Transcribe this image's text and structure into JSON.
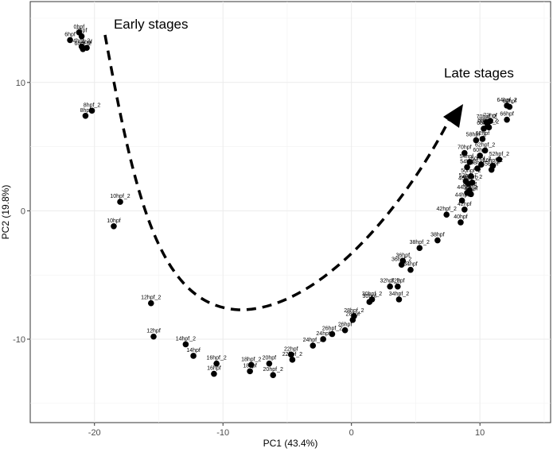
{
  "chart_data": {
    "type": "scatter",
    "title": "",
    "xlabel": "PC1 (43.4%)",
    "ylabel": "PC2 (19.8%)",
    "xlim": [
      -25,
      15.5
    ],
    "ylim": [
      -16.5,
      16.3
    ],
    "xticks": [
      -20,
      -10,
      0,
      10
    ],
    "yticks": [
      -10,
      0,
      10
    ],
    "grid": true,
    "legend": "none",
    "annotations": [
      {
        "text": "Early stages",
        "x": -18.5,
        "y": 14.2
      },
      {
        "text": "Late stages",
        "x": 7.2,
        "y": 10.4
      }
    ],
    "points": [
      {
        "label": "0hpf",
        "x": -21.2,
        "y": 13.9
      },
      {
        "label": "2hpf",
        "x": -21.0,
        "y": 13.6
      },
      {
        "label": "6hpf",
        "x": -21.9,
        "y": 13.3
      },
      {
        "label": "4hpf_2",
        "x": -21.0,
        "y": 12.8
      },
      {
        "label": "6hpf_2",
        "x": -20.9,
        "y": 12.6
      },
      {
        "label": "4hpf",
        "x": -20.6,
        "y": 12.7
      },
      {
        "label": "8hpf_2",
        "x": -20.2,
        "y": 7.8
      },
      {
        "label": "8hpf",
        "x": -20.7,
        "y": 7.4
      },
      {
        "label": "10hpf_2",
        "x": -18.0,
        "y": 0.7
      },
      {
        "label": "10hpf",
        "x": -18.5,
        "y": -1.2
      },
      {
        "label": "12hpf_2",
        "x": -15.6,
        "y": -7.2
      },
      {
        "label": "12hpf",
        "x": -15.4,
        "y": -9.8
      },
      {
        "label": "14hpf_2",
        "x": -12.9,
        "y": -10.4
      },
      {
        "label": "14hpf",
        "x": -12.3,
        "y": -11.3
      },
      {
        "label": "16hpf_2",
        "x": -10.5,
        "y": -11.9
      },
      {
        "label": "16hpf",
        "x": -10.7,
        "y": -12.7
      },
      {
        "label": "18hpf_2",
        "x": -7.8,
        "y": -12.0
      },
      {
        "label": "18hpf",
        "x": -7.9,
        "y": -12.5
      },
      {
        "label": "20hpf",
        "x": -6.4,
        "y": -11.9
      },
      {
        "label": "20hpf_2",
        "x": -6.1,
        "y": -12.8
      },
      {
        "label": "22hpf",
        "x": -4.7,
        "y": -11.2
      },
      {
        "label": "22hpf_2",
        "x": -4.6,
        "y": -11.6
      },
      {
        "label": "24hpf_2",
        "x": -3.0,
        "y": -10.5
      },
      {
        "label": "24hpf",
        "x": -2.2,
        "y": -10.0
      },
      {
        "label": "26hpf_2",
        "x": -1.5,
        "y": -9.6
      },
      {
        "label": "26hpf",
        "x": -0.5,
        "y": -9.3
      },
      {
        "label": "28hpf",
        "x": 0.1,
        "y": -8.5
      },
      {
        "label": "28hpf_2",
        "x": 0.2,
        "y": -8.2
      },
      {
        "label": "30hpf",
        "x": 1.4,
        "y": -7.1
      },
      {
        "label": "30hpf_2",
        "x": 1.6,
        "y": -6.9
      },
      {
        "label": "32hpf_2",
        "x": 3.0,
        "y": -5.9
      },
      {
        "label": "32hpf",
        "x": 3.6,
        "y": -5.9
      },
      {
        "label": "34hpf_2",
        "x": 3.7,
        "y": -6.9
      },
      {
        "label": "34hpf",
        "x": 4.6,
        "y": -4.6
      },
      {
        "label": "36hpf_2",
        "x": 3.9,
        "y": -4.2
      },
      {
        "label": "36hpf",
        "x": 4.0,
        "y": -3.9
      },
      {
        "label": "38hpf_2",
        "x": 5.3,
        "y": -2.9
      },
      {
        "label": "38hpf",
        "x": 6.7,
        "y": -2.3
      },
      {
        "label": "40hpf",
        "x": 8.5,
        "y": -0.9
      },
      {
        "label": "42hpf_2",
        "x": 7.4,
        "y": -0.3
      },
      {
        "label": "42hpf",
        "x": 8.8,
        "y": 0.1
      },
      {
        "label": "44hpf",
        "x": 8.6,
        "y": 0.8
      },
      {
        "label": "44hpf_2",
        "x": 9.0,
        "y": 1.4
      },
      {
        "label": "46hpf",
        "x": 9.2,
        "y": 1.6
      },
      {
        "label": "46hpf_2",
        "x": 9.1,
        "y": 2.1
      },
      {
        "label": "48hpf",
        "x": 9.3,
        "y": 1.3
      },
      {
        "label": "48hpf_2",
        "x": 9.4,
        "y": 2.2
      },
      {
        "label": "50hpf_2",
        "x": 9.3,
        "y": 2.7
      },
      {
        "label": "52hpf",
        "x": 8.9,
        "y": 2.3
      },
      {
        "label": "52hpf_2",
        "x": 11.5,
        "y": 4.0
      },
      {
        "label": "54hpf",
        "x": 9.0,
        "y": 3.4
      },
      {
        "label": "54hpf_2",
        "x": 9.2,
        "y": 3.8
      },
      {
        "label": "56hpf",
        "x": 10.9,
        "y": 3.2
      },
      {
        "label": "56hpf_2",
        "x": 11.0,
        "y": 3.5
      },
      {
        "label": "58hpf",
        "x": 9.8,
        "y": 3.3
      },
      {
        "label": "58hpf_2",
        "x": 9.7,
        "y": 5.5
      },
      {
        "label": "60hpf",
        "x": 10.0,
        "y": 4.3
      },
      {
        "label": "60hpf_2",
        "x": 10.1,
        "y": 3.6
      },
      {
        "label": "62hpf",
        "x": 10.2,
        "y": 5.6
      },
      {
        "label": "62hpf_2",
        "x": 10.4,
        "y": 4.7
      },
      {
        "label": "64hpf",
        "x": 12.3,
        "y": 8.1
      },
      {
        "label": "64hpf_2",
        "x": 12.1,
        "y": 8.2
      },
      {
        "label": "66hpf",
        "x": 12.1,
        "y": 7.1
      },
      {
        "label": "68hpf",
        "x": 10.3,
        "y": 6.4
      },
      {
        "label": "68hpf_2",
        "x": 10.6,
        "y": 6.6
      },
      {
        "label": "70hpf",
        "x": 8.8,
        "y": 4.5
      },
      {
        "label": "70hpf_2",
        "x": 10.5,
        "y": 6.9
      },
      {
        "label": "72hpf",
        "x": 10.8,
        "y": 7.0
      },
      {
        "label": "72hpf_2",
        "x": 10.7,
        "y": 6.5
      }
    ]
  }
}
